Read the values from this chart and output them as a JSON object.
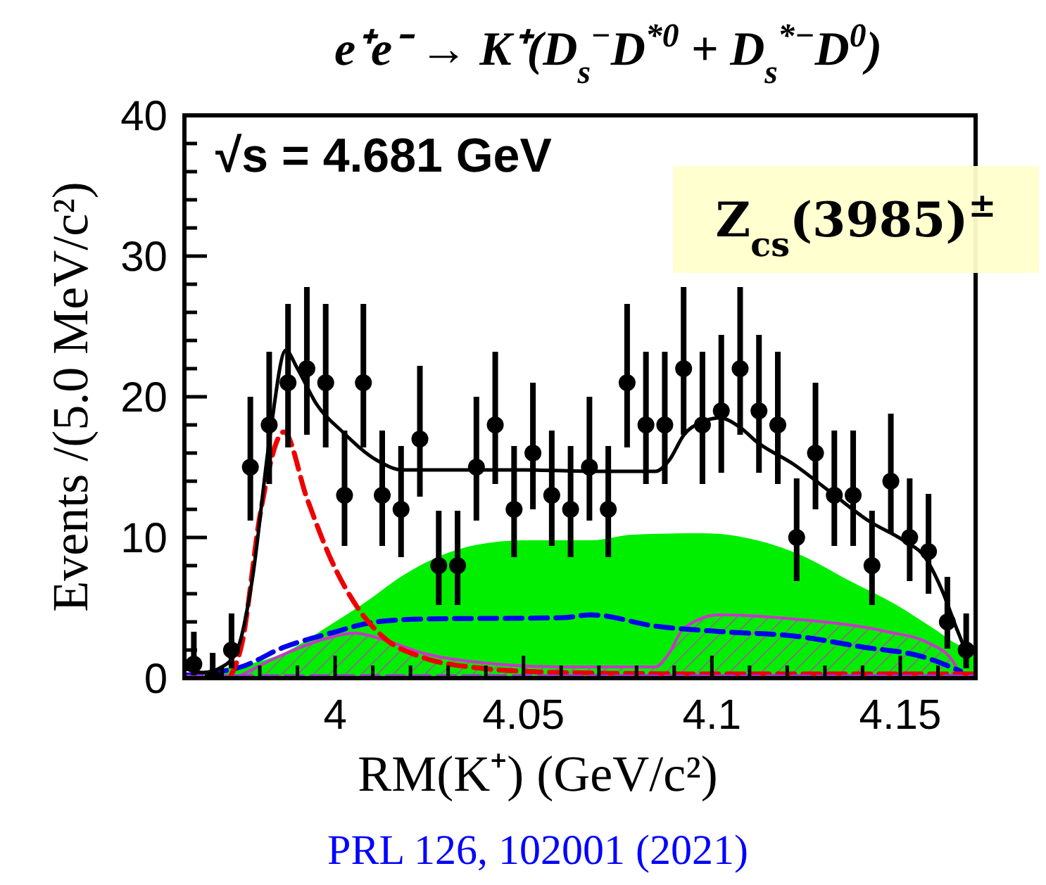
{
  "chart_data": {
    "type": "scatter",
    "title": "e⁺e⁻ → K⁺(D$_{s}$$^{−}$D$^{*0}$ + D$_{s}$$^{*−}$D$^{0}$)",
    "xlabel": "RM(K⁺) (GeV/c²)",
    "ylabel": "Events /(5.0 MeV/c²)",
    "annotations": [
      "√s = 4.681 GeV",
      "Z$_{cs}$(3985)$^{±}$",
      "PRL 126, 102001 (2021)"
    ],
    "xlim": [
      3.96,
      4.17
    ],
    "ylim": [
      0,
      40
    ],
    "xticks": [
      {
        "value": 3.97,
        "label": null
      },
      {
        "value": 3.98,
        "label": null
      },
      {
        "value": 3.99,
        "label": null
      },
      4,
      {
        "value": 4.01,
        "label": null
      },
      {
        "value": 4.02,
        "label": null
      },
      {
        "value": 4.03,
        "label": null
      },
      {
        "value": 4.04,
        "label": null
      },
      4.05,
      {
        "value": 4.06,
        "label": null
      },
      {
        "value": 4.07,
        "label": null
      },
      {
        "value": 4.08,
        "label": null
      },
      {
        "value": 4.09,
        "label": null
      },
      4.1,
      {
        "value": 4.11,
        "label": null
      },
      {
        "value": 4.12,
        "label": null
      },
      {
        "value": 4.13,
        "label": null
      },
      {
        "value": 4.14,
        "label": null
      },
      4.15,
      {
        "value": 4.16,
        "label": null
      }
    ],
    "yticks": [
      0,
      {
        "value": 2,
        "label": null
      },
      {
        "value": 4,
        "label": null
      },
      {
        "value": 6,
        "label": null
      },
      {
        "value": 8,
        "label": null
      },
      10,
      {
        "value": 12,
        "label": null
      },
      {
        "value": 14,
        "label": null
      },
      {
        "value": 16,
        "label": null
      },
      {
        "value": 18,
        "label": null
      },
      20,
      {
        "value": 22,
        "label": null
      },
      {
        "value": 24,
        "label": null
      },
      {
        "value": 26,
        "label": null
      },
      {
        "value": 28,
        "label": null
      },
      30,
      {
        "value": 32,
        "label": null
      },
      {
        "value": 34,
        "label": null
      },
      {
        "value": 36,
        "label": null
      },
      {
        "value": 38,
        "label": null
      },
      40
    ],
    "grid": false,
    "series": [
      {
        "type": "area",
        "color": "#00ee00",
        "x": [
          3.96,
          3.965,
          3.9864,
          3.9988,
          4.0086,
          4.018,
          4.028,
          4.038,
          4.05,
          4.0679,
          4.079,
          4.0973,
          4.112,
          4.124,
          4.136,
          4.149,
          4.159,
          4.166,
          4.17
        ],
        "values": [
          0.3,
          0.5,
          1.8,
          3.8,
          5.5,
          7.3,
          8.7,
          9.5,
          9.8,
          9.8,
          10.2,
          10.3,
          9.8,
          8.7,
          7,
          5.2,
          3.5,
          2.3,
          2
        ]
      },
      {
        "type": "area",
        "color": "#cc33cc",
        "x": [
          3.975,
          3.9864,
          3.9988,
          4.005,
          4.0133,
          4.023,
          4.0356,
          4.0604,
          4.085,
          4.0887,
          4.0924,
          4.102,
          4.1217,
          4.1465,
          4.1575,
          4.164,
          4.166
        ],
        "values": [
          0.2,
          1.7,
          2.9,
          3.2,
          2.7,
          1.8,
          1.2,
          0.8,
          0.8,
          1.8,
          3.5,
          4.5,
          4.2,
          3.3,
          2.5,
          1.2,
          0
        ]
      },
      {
        "type": "line",
        "color": "#0000ee",
        "line_style": "dashed",
        "x": [
          3.96,
          3.975,
          3.9864,
          3.9988,
          4.0109,
          4.023,
          4.0604,
          4.0679,
          4.085,
          4.103,
          4.1217,
          4.1403,
          4.1563,
          4.166
        ],
        "values": [
          0.2,
          0.8,
          2.2,
          3.2,
          4,
          4.2,
          4.3,
          4.5,
          3.7,
          3.3,
          3,
          2.2,
          1.5,
          0.5
        ]
      },
      {
        "type": "line",
        "color": "#ee0000",
        "line_style": "dashed",
        "x": [
          3.972,
          3.9753,
          3.9802,
          3.9864,
          3.9925,
          3.9988,
          4.006,
          4.0133,
          4.023,
          4.0356,
          4.06,
          4.1,
          4.17
        ],
        "values": [
          0,
          2.5,
          11.8,
          17.5,
          12.8,
          8.5,
          5,
          2.8,
          1.5,
          0.8,
          0.4,
          0.3,
          0.3
        ]
      },
      {
        "type": "line",
        "color": "#000000",
        "line_style": "solid",
        "x": [
          3.96,
          3.965,
          3.97,
          3.974,
          3.978,
          3.9826,
          3.9869,
          3.99,
          3.995,
          4.002,
          4.011,
          4.018,
          4.03,
          4.05,
          4.07,
          4.085,
          4.0887,
          4.0926,
          4.0973,
          4.102,
          4.1076,
          4.1119,
          4.1217,
          4.1316,
          4.1415,
          4.1514,
          4.1563,
          4.161,
          4.165,
          4.168
        ],
        "values": [
          0.7,
          0.4,
          0.8,
          2,
          7,
          17,
          23.3,
          22,
          19.5,
          17.5,
          15.5,
          14.8,
          14.8,
          14.8,
          14.7,
          14.7,
          15.5,
          17.3,
          18.2,
          18.5,
          17.8,
          16.8,
          15.2,
          13.2,
          11.2,
          9.7,
          8.7,
          6.3,
          3.5,
          1.5
        ]
      },
      {
        "type": "line",
        "color": "#9933cc",
        "line_style": "dashed",
        "x": [
          3.96,
          4.17
        ],
        "values": [
          0.1,
          0.1
        ]
      },
      {
        "type": "scatter",
        "color": "#000000",
        "marker": "circle",
        "x": [
          3.9625,
          3.9675,
          3.9725,
          3.9775,
          3.9825,
          3.9875,
          3.9925,
          3.9975,
          4.0025,
          4.0075,
          4.0125,
          4.0175,
          4.0225,
          4.0275,
          4.0325,
          4.0375,
          4.0425,
          4.0475,
          4.0525,
          4.0575,
          4.0625,
          4.0675,
          4.0725,
          4.0775,
          4.0825,
          4.0875,
          4.0925,
          4.0975,
          4.1025,
          4.1075,
          4.1125,
          4.1175,
          4.1225,
          4.1275,
          4.1325,
          4.1375,
          4.1425,
          4.1475,
          4.1525,
          4.1575,
          4.1625,
          4.1675
        ],
        "values": [
          1,
          0,
          2,
          15,
          18,
          21,
          22,
          21,
          13,
          21,
          13,
          12,
          17,
          8,
          8,
          15,
          18,
          12,
          16,
          13,
          12,
          15,
          12,
          21,
          18,
          18,
          22,
          18,
          19,
          22,
          19,
          18,
          10,
          16,
          13,
          13,
          8,
          14,
          10,
          9,
          4,
          2
        ],
        "errors": [
          [
            0.2,
            3.3
          ],
          [
            0,
            1.8
          ],
          [
            0.7,
            4.6
          ],
          [
            11.2,
            20
          ],
          [
            13.8,
            23.2
          ],
          [
            16.4,
            26.6
          ],
          [
            17.3,
            27.8
          ],
          [
            16.4,
            26.6
          ],
          [
            9.4,
            17.6
          ],
          [
            16.4,
            26.6
          ],
          [
            9.4,
            17.6
          ],
          [
            8.6,
            16.5
          ],
          [
            12.9,
            22.2
          ],
          [
            5.2,
            11.9
          ],
          [
            5.2,
            11.9
          ],
          [
            11.2,
            20
          ],
          [
            13.8,
            23.2
          ],
          [
            8.6,
            16.5
          ],
          [
            12,
            21
          ],
          [
            9.4,
            17.6
          ],
          [
            8.6,
            16.5
          ],
          [
            11.2,
            20
          ],
          [
            8.6,
            16.5
          ],
          [
            16.4,
            26.6
          ],
          [
            13.8,
            23.2
          ],
          [
            13.8,
            23.2
          ],
          [
            17.3,
            27.8
          ],
          [
            13.8,
            23.2
          ],
          [
            14.6,
            24.4
          ],
          [
            17.3,
            27.8
          ],
          [
            14.6,
            24.4
          ],
          [
            13.8,
            23.2
          ],
          [
            6.9,
            14.2
          ],
          [
            12,
            21
          ],
          [
            9.4,
            17.6
          ],
          [
            9.4,
            17.6
          ],
          [
            5.2,
            11.9
          ],
          [
            10.3,
            18.8
          ],
          [
            6.9,
            14.2
          ],
          [
            6,
            13.1
          ],
          [
            2.1,
            7.2
          ],
          [
            0.7,
            4.6
          ]
        ]
      }
    ]
  }
}
